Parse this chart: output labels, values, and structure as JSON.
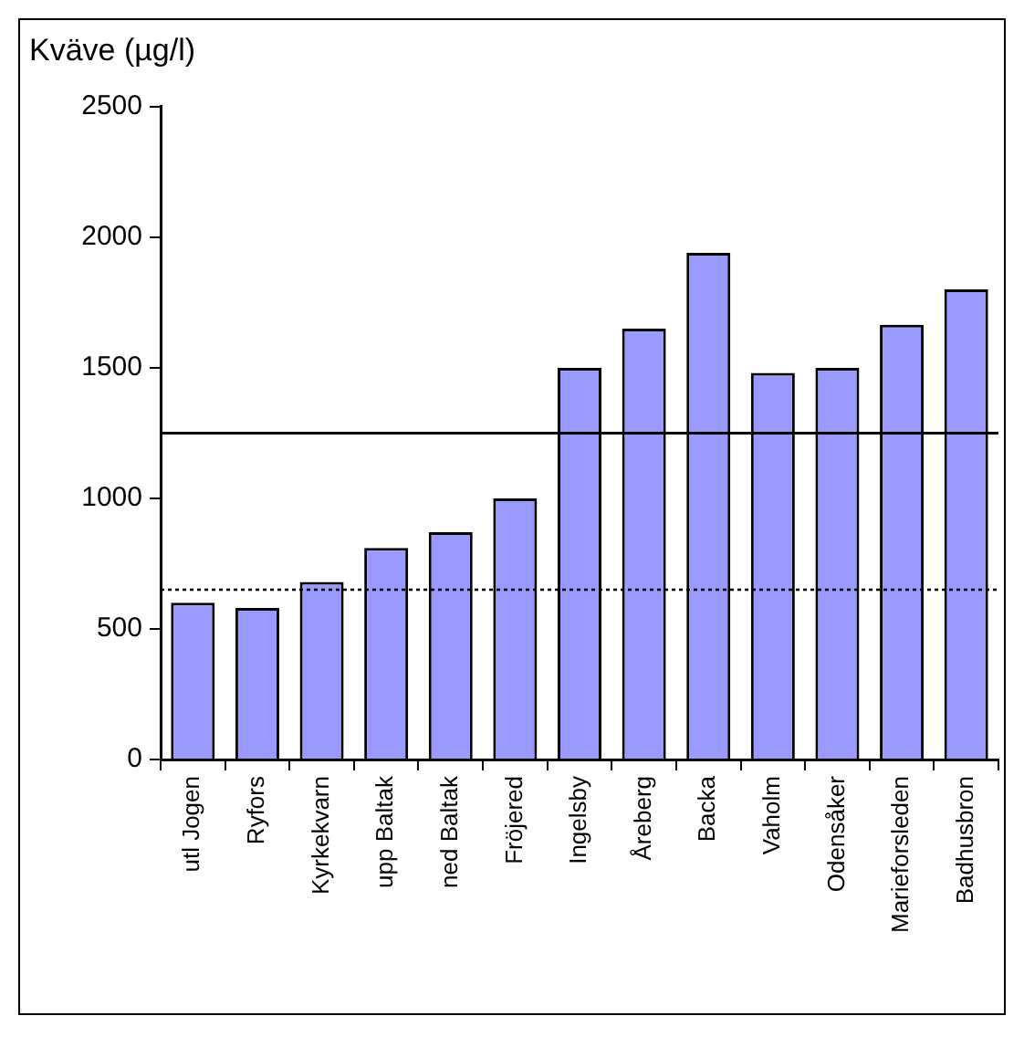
{
  "chart_data": {
    "type": "bar",
    "title": "Kväve (µg/l)",
    "categories": [
      "utl Jogen",
      "Ryfors",
      "Kyrkekvarn",
      "upp Baltak",
      "ned Baltak",
      "Fröjered",
      "Ingelsby",
      "Åreberg",
      "Backa",
      "Vaholm",
      "Odensåker",
      "Marieforsleden",
      "Badhusbron"
    ],
    "values": [
      600,
      580,
      680,
      810,
      870,
      1000,
      1500,
      1650,
      1940,
      1480,
      1500,
      1665,
      1800
    ],
    "color": "#9999ff",
    "ylim": [
      0,
      2500
    ],
    "yticks": [
      0,
      500,
      1000,
      1500,
      2000,
      2500
    ],
    "ref_lines": [
      {
        "axis": "y",
        "value": 1250,
        "line_style": "solid",
        "color": "#000000"
      },
      {
        "axis": "y",
        "value": 650,
        "line_style": "dotted",
        "color": "#000000"
      }
    ],
    "grid": false,
    "legend": false
  }
}
